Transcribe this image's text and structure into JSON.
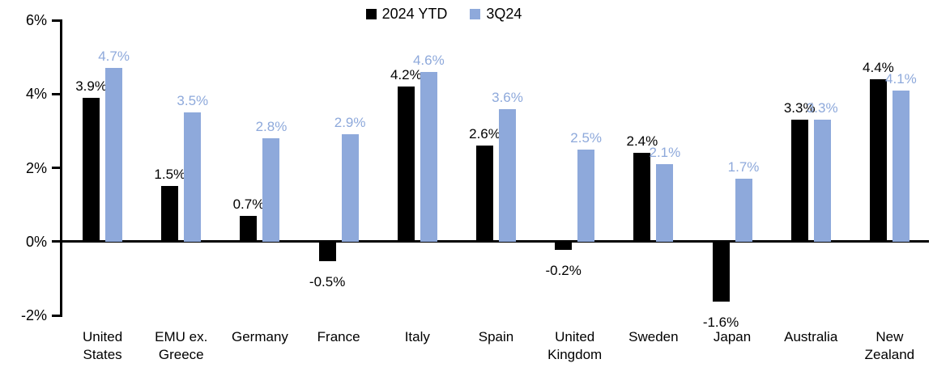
{
  "chart_data": {
    "type": "bar",
    "title": "",
    "xlabel": "",
    "ylabel": "",
    "categories": [
      "United States",
      "EMU ex. Greece",
      "Germany",
      "France",
      "Italy",
      "Spain",
      "United Kingdom",
      "Sweden",
      "Japan",
      "Australia",
      "New Zealand"
    ],
    "series": [
      {
        "name": "2024 YTD",
        "color": "#000000",
        "values": [
          3.9,
          1.5,
          0.7,
          -0.5,
          4.2,
          2.6,
          -0.2,
          2.4,
          -1.6,
          3.3,
          4.4
        ],
        "data_labels": [
          "3.9%",
          "1.5%",
          "0.7%",
          "-0.5%",
          "4.2%",
          "2.6%",
          "-0.2%",
          "2.4%",
          "-1.6%",
          "3.3%",
          "4.4%"
        ]
      },
      {
        "name": "3Q24",
        "color": "#8EA9DB",
        "values": [
          4.7,
          3.5,
          2.8,
          2.9,
          4.6,
          3.6,
          2.5,
          2.1,
          1.7,
          3.3,
          4.1
        ],
        "data_labels": [
          "4.7%",
          "3.5%",
          "2.8%",
          "2.9%",
          "4.6%",
          "3.6%",
          "2.5%",
          "2.1%",
          "1.7%",
          "3.3%",
          "4.1%"
        ]
      }
    ],
    "ylim": [
      -2,
      6
    ],
    "y_ticks": [
      {
        "value": 6,
        "label": "6%"
      },
      {
        "value": 4,
        "label": "4%"
      },
      {
        "value": 2,
        "label": "2%"
      },
      {
        "value": 0,
        "label": "0%"
      },
      {
        "value": -2,
        "label": "-2%"
      }
    ],
    "grid": false,
    "legend_position": "top"
  }
}
